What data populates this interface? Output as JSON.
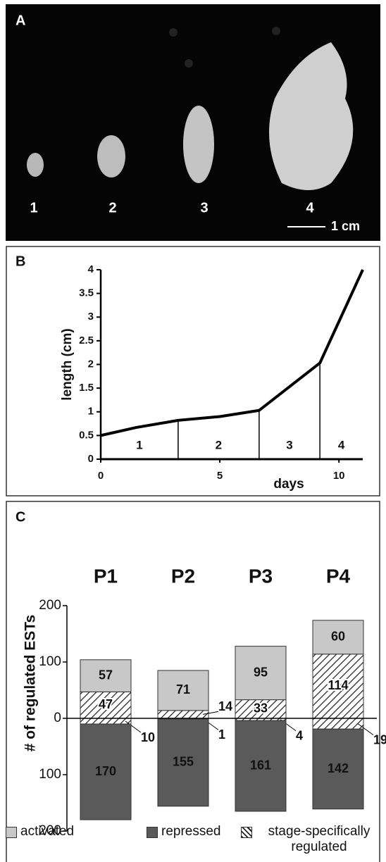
{
  "panel_a": {
    "label": "A",
    "flower_labels": [
      "1",
      "2",
      "3",
      "4"
    ],
    "scale_bar": "1 cm"
  },
  "chart_data": [
    {
      "type": "line",
      "panel_label": "B",
      "x": [
        0,
        1.5,
        3.25,
        5,
        6.65,
        9.2,
        11
      ],
      "values": [
        0.5,
        0.67,
        0.82,
        0.9,
        1.03,
        2.03,
        4
      ],
      "color": "#000000",
      "xlim": [
        0,
        11
      ],
      "xticks": [
        0,
        5,
        10
      ],
      "ylim": [
        0,
        4
      ],
      "yticks": [
        0,
        0.5,
        1,
        1.5,
        2,
        2.5,
        3,
        3.5,
        4
      ],
      "x_label": "days",
      "y_label": "length (cm)",
      "stage_boundaries": [
        3.25,
        6.65,
        9.2
      ],
      "stage_labels": [
        "1",
        "2",
        "3",
        "4"
      ]
    },
    {
      "type": "stacked_bar",
      "panel_label": "C",
      "categories": [
        "P1",
        "P2",
        "P3",
        "P4"
      ],
      "y_label": "# of regulated ESTs",
      "ylim": [
        -200,
        200
      ],
      "yticks": [
        {
          "value": -200,
          "label": "200"
        },
        {
          "value": -100,
          "label": "100"
        },
        0,
        100,
        200
      ],
      "series": [
        {
          "name": "activated",
          "color": "#c8c8c8",
          "values": [
            57,
            71,
            95,
            60
          ]
        },
        {
          "name": "repressed",
          "color": "#5a5a5a",
          "values": [
            -170,
            -155,
            -161,
            -142
          ],
          "value_labels": [
            "170",
            "155",
            "161",
            "142"
          ]
        },
        {
          "name": "stage-specifically regulated",
          "color": "#ffffff",
          "hatch": true,
          "values": [
            47,
            14,
            33,
            114
          ],
          "values_below": [
            -10,
            -1,
            -4,
            -19
          ],
          "value_labels_below": [
            "10",
            "1",
            "4",
            "19"
          ]
        }
      ]
    }
  ]
}
